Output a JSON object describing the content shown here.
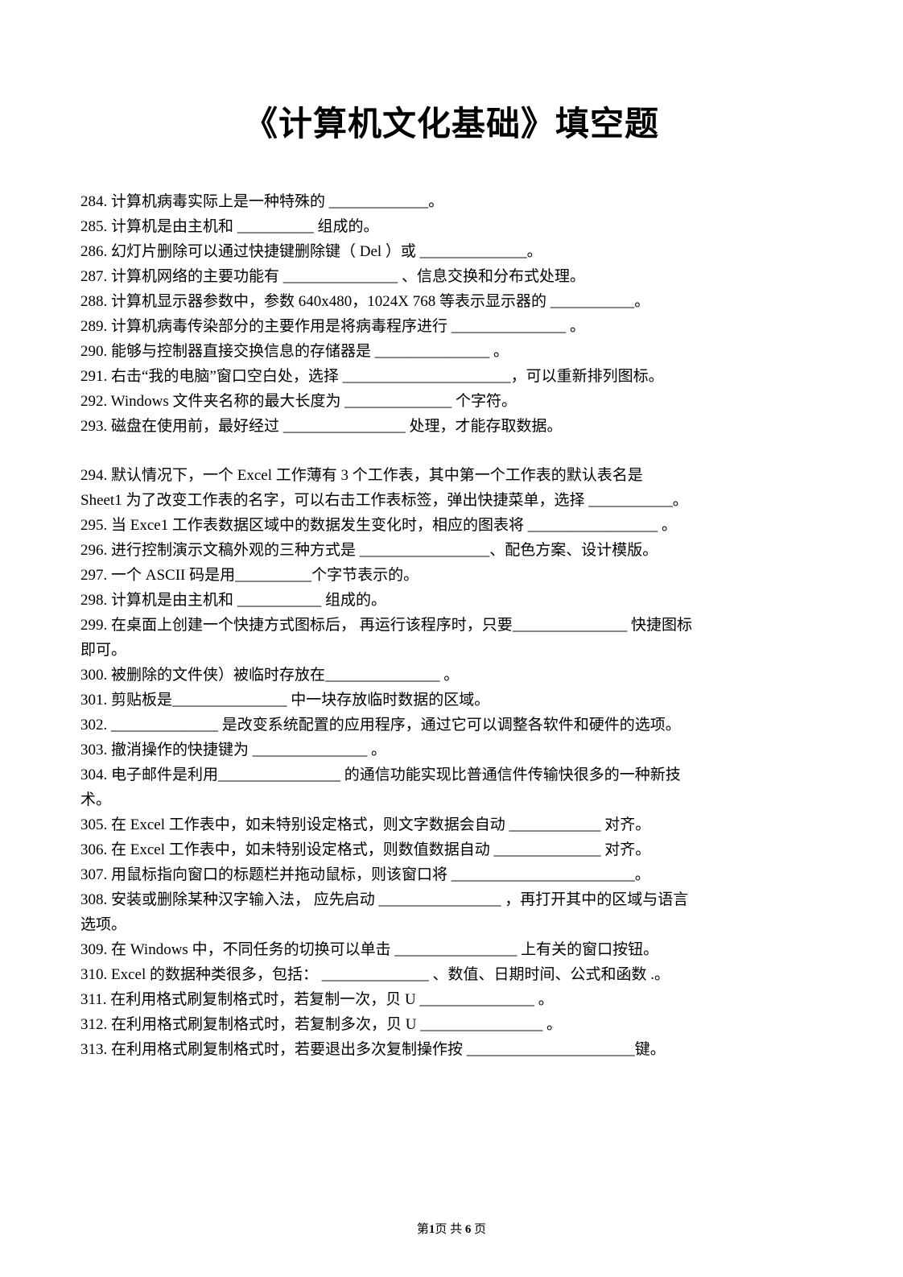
{
  "title": "《计算机文化基础》填空题",
  "questions": [
    {
      "num": "284.",
      "text": "计算机病毒实际上是一种特殊的 _____________。"
    },
    {
      "num": "285.",
      "text": "计算机是由主机和 __________ 组成的。"
    },
    {
      "num": "286.",
      "text": "幻灯片删除可以通过快捷键删除键（ Del ）或 ______________。"
    },
    {
      "num": "287.",
      "text": "计算机网络的主要功能有 _______________ 、信息交换和分布式处理。"
    },
    {
      "num": "288.",
      "text": "计算机显示器参数中，参数    640x480，1024X 768 等表示显示器的 ___________。"
    },
    {
      "num": "289.",
      "text": "计算机病毒传染部分的主要作用是将病毒程序进行 _______________ 。"
    },
    {
      "num": "290.",
      "text": "能够与控制器直接交换信息的存储器是 _______________ 。"
    },
    {
      "num": "291.",
      "text": "右击“我的电脑”窗口空白处，选择 ______________________，可以重新排列图标。"
    },
    {
      "num": "292.",
      "text": "Windows 文件夹名称的最大长度为 ______________ 个字符。"
    },
    {
      "num": "293.",
      "text": "磁盘在使用前，最好经过 ________________ 处理，才能存取数据。"
    }
  ],
  "questions2": [
    {
      "num": "294.",
      "text": "默认情况下，一个 Excel 工作薄有 3 个工作表，其中第一个工作表的默认表名是"
    },
    {
      "num": "",
      "text": "Sheet1 为了改变工作表的名字，可以右击工作表标签，弹出快捷菜单，选择        ___________。"
    },
    {
      "num": "295.",
      "text": "当 Exce1 工作表数据区域中的数据发生变化时，相应的图表将 _________________ 。"
    },
    {
      "num": "296.",
      "text": "进行控制演示文稿外观的三种方式是 _________________、配色方案、设计模版。"
    },
    {
      "num": "297.",
      "text": "一个 ASCII 码是用__________个字节表示的。"
    },
    {
      "num": "298.",
      "text": "计算机是由主机和 ___________ 组成的。"
    },
    {
      "num": "299.",
      "text": "在桌面上创建一个快捷方式图标后，   再运行该程序时，只要_______________ 快捷图标"
    },
    {
      "num": "",
      "text": "即可。"
    },
    {
      "num": "300.",
      "text": "被删除的文件侠）被临时存放在_______________ 。"
    },
    {
      "num": "301.",
      "text": "剪贴板是_______________ 中一块存放临时数据的区域。"
    },
    {
      "num": "302.",
      "text": "______________ 是改变系统配置的应用程序，通过它可以调整各软件和硬件的选项。"
    },
    {
      "num": "303.",
      "text": "撤消操作的快捷键为 _______________ 。"
    },
    {
      "num": "304.",
      "text": "电子邮件是利用________________ 的通信功能实现比普通信件传输快很多的一种新技"
    },
    {
      "num": "",
      "text": "术。"
    },
    {
      "num": "305.",
      "text": "在 Excel 工作表中，如未特别设定格式，则文字数据会自动 ____________ 对齐。"
    },
    {
      "num": "306.",
      "text": "在 Excel 工作表中，如未特别设定格式，则数值数据自动 ______________ 对齐。"
    },
    {
      "num": "307.",
      "text": "用鼠标指向窗口的标题栏并拖动鼠标，则该窗口将 ________________________。"
    },
    {
      "num": "308.",
      "text": "安装或删除某种汉字输入法，   应先启动 ________________ ，再打开其中的区域与语言"
    },
    {
      "num": "",
      "text": "选项。"
    },
    {
      "num": "309.",
      "text": "在 Windows 中，不同任务的切换可以单击 ________________ 上有关的窗口按钮。"
    },
    {
      "num": "310.",
      "text": "Excel 的数据种类很多，包括： ______________ 、数值、日期时间、公式和函数   .。"
    },
    {
      "num": "311.",
      "text": "在利用格式刷复制格式时，若复制一次，贝 U _______________ 。"
    },
    {
      "num": "312.",
      "text": "在利用格式刷复制格式时，若复制多次，贝 U ________________ 。"
    },
    {
      "num": "313.",
      "text": "在利用格式刷复制格式时，若要退出多次复制操作按 ______________________键。"
    }
  ],
  "footer": {
    "prefix": "第",
    "page": "1",
    "middle": "页 共 ",
    "total": "6",
    "suffix": " 页"
  },
  "colors": {
    "background": "#ffffff",
    "text": "#000000"
  },
  "typography": {
    "title_fontsize": 42,
    "body_fontsize": 19,
    "footer_fontsize": 15,
    "line_height": 30
  }
}
